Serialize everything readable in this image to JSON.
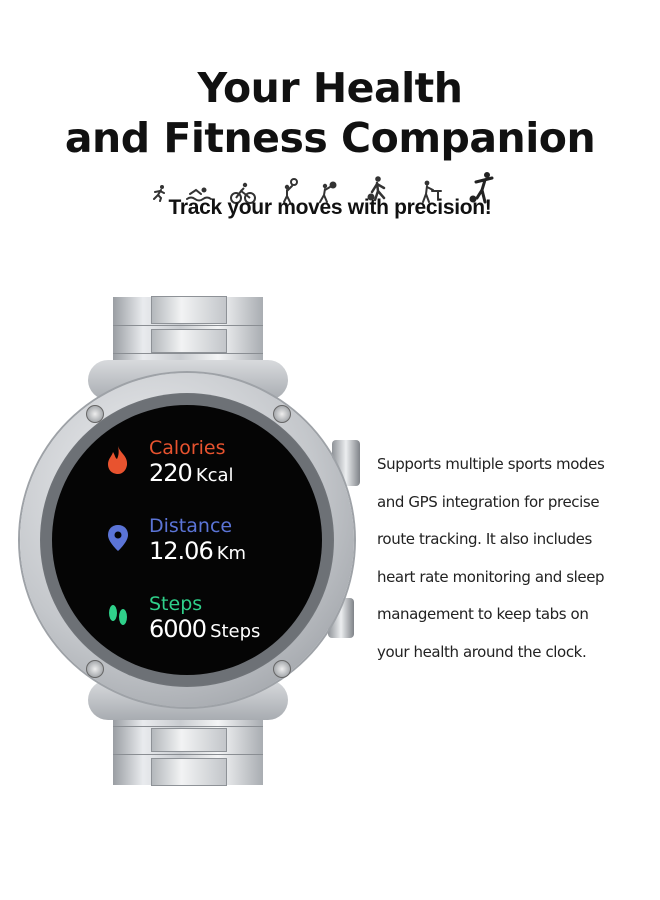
{
  "header": {
    "title_line1": "Your Health",
    "title_line2": "and Fitness Companion",
    "subtitle": "Track your moves with precision!",
    "sport_icons": [
      "running-icon",
      "swimming-icon",
      "cycling-icon",
      "tennis-icon",
      "volleyball-icon",
      "basketball-icon",
      "table-tennis-icon",
      "soccer-icon"
    ]
  },
  "watch": {
    "metrics": [
      {
        "label": "Calories",
        "value": "220",
        "unit": "Kcal",
        "icon": "flame-icon",
        "color": "#e8532f"
      },
      {
        "label": "Distance",
        "value": "12.06",
        "unit": "Km",
        "icon": "location-pin-icon",
        "color": "#5b74d6"
      },
      {
        "label": "Steps",
        "value": "6000",
        "unit": "Steps",
        "icon": "footprints-icon",
        "color": "#2fd08a"
      }
    ]
  },
  "description": {
    "lines": [
      "Supports multiple sports modes",
      "and GPS integration for precise",
      "route tracking. It also includes",
      "heart rate monitoring and sleep",
      "management to keep tabs on",
      "your health around the clock."
    ]
  }
}
